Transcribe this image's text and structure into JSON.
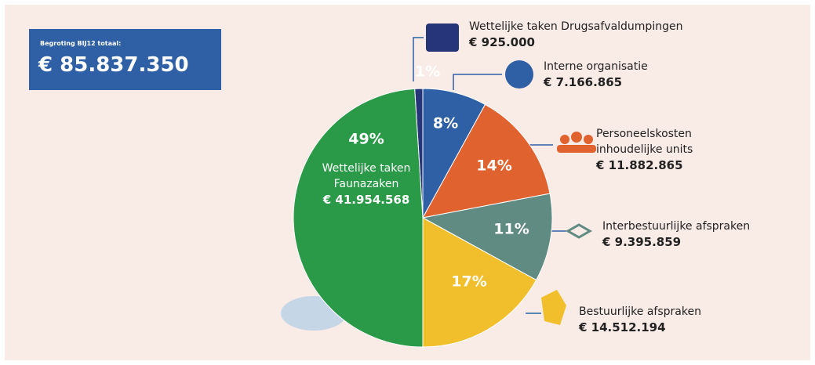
{
  "chart_data": {
    "type": "pie",
    "total_label": "Begroting BIJ12 totaal:",
    "total": "€ 85.837.350",
    "categories": [
      "Wettelijke taken Drugsafvaldumpingen",
      "Interne organisatie",
      "Personeelskosten inhoudelijke units",
      "Interbestuurlijke afspraken",
      "Bestuurlijke afspraken",
      "Wettelijke taken Faunazaken"
    ],
    "values": [
      1,
      8,
      14,
      11,
      17,
      49
    ],
    "value_labels": [
      "1%",
      "8%",
      "14%",
      "11%",
      "17%",
      "49%"
    ],
    "amount_labels": [
      "€ 925.000",
      "€ 7.166.865",
      "€ 11.882.865",
      "€ 9.395.859",
      "€ 14.512.194",
      "€ 41.954.568"
    ],
    "colors": [
      "#26357a",
      "#2f5fa5",
      "#e0622f",
      "#5f8b82",
      "#f0bf2b",
      "#2a9a49"
    ]
  }
}
